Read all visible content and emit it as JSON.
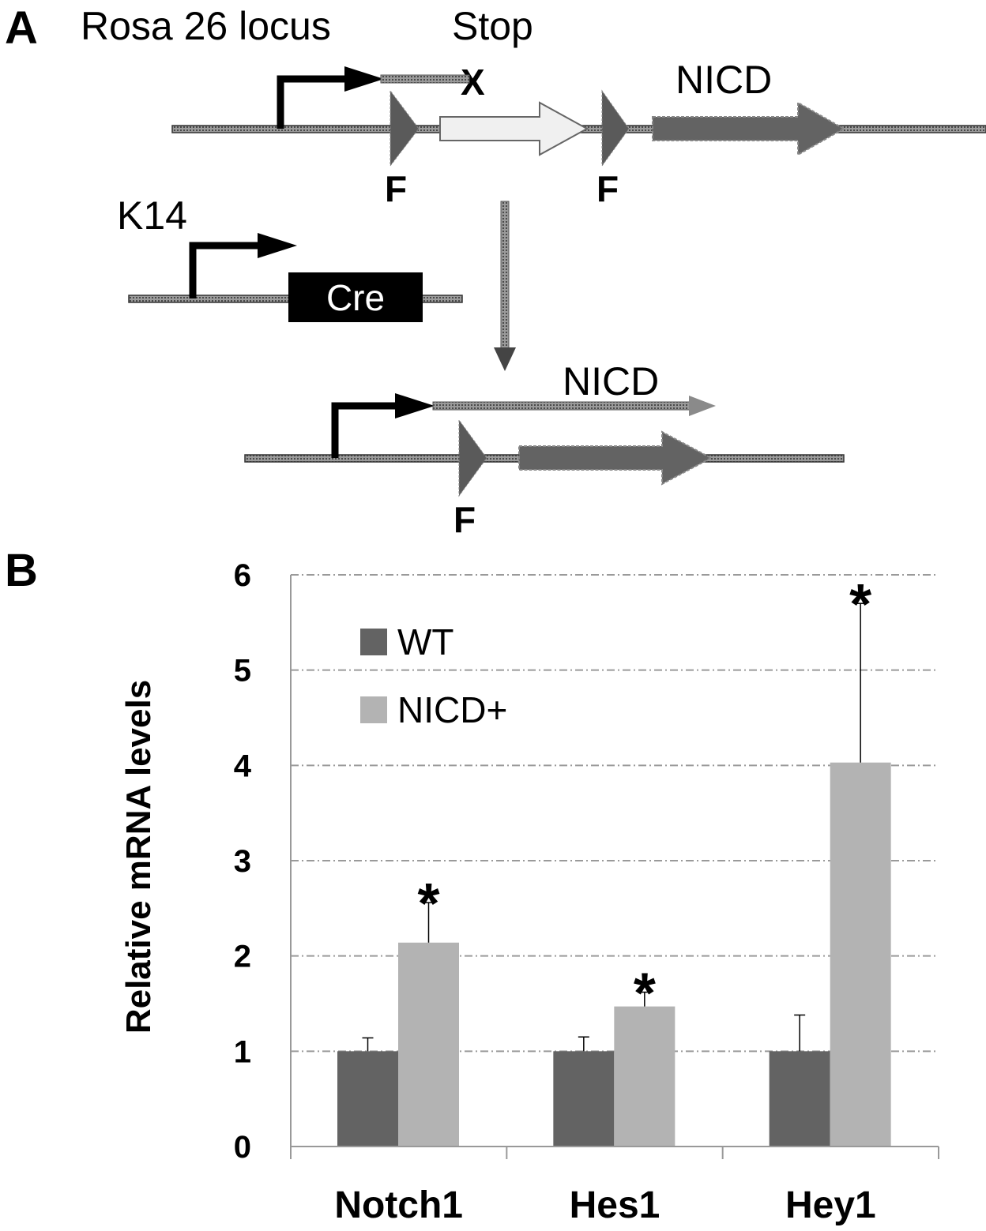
{
  "panel_a": {
    "letter": "A",
    "locus_label": "Rosa 26 locus",
    "stop_label": "Stop",
    "stop_mark": "X",
    "nicd_top_label": "NICD",
    "frt_label": "F",
    "k14_label": "K14",
    "cre_label": "Cre",
    "nicd_bottom_label": "NICD"
  },
  "panel_b": {
    "letter": "B"
  },
  "colors": {
    "wt": "#636363",
    "nicd": "#b3b3b3",
    "grid": "#9a9a9a",
    "stop_box": "#f0f0f0"
  },
  "chart_data": {
    "type": "bar",
    "ylabel": "Relative mRNA levels",
    "ylim": [
      0,
      6
    ],
    "yticks": [
      0,
      1,
      2,
      3,
      4,
      5,
      6
    ],
    "grid": true,
    "grid_style": "dash-dot",
    "legend_position": "top-left",
    "categories": [
      "Notch1",
      "Hes1",
      "Hey1"
    ],
    "series": [
      {
        "name": "WT",
        "values": [
          1.0,
          1.0,
          1.0
        ],
        "errors": [
          0.14,
          0.15,
          0.38
        ]
      },
      {
        "name": "NICD+",
        "values": [
          2.14,
          1.47,
          4.03
        ],
        "errors": [
          0.42,
          0.15,
          1.67
        ]
      }
    ],
    "annotations": [
      "*",
      "*",
      "*"
    ]
  }
}
